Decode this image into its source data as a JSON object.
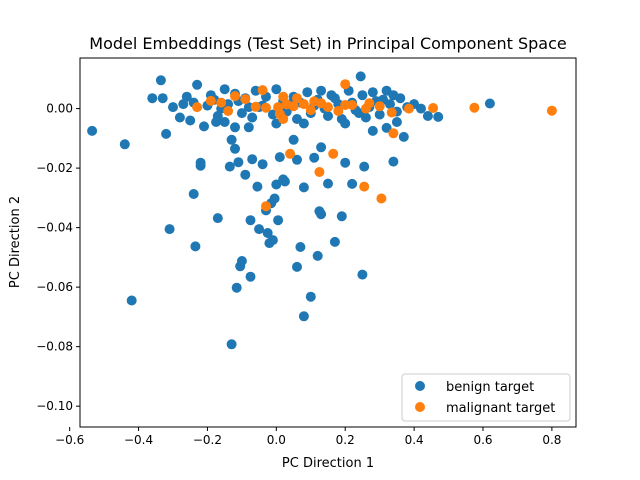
{
  "chart_data": {
    "type": "scatter",
    "title": "Model Embeddings (Test Set) in Principal Component Space",
    "xlabel": "PC Direction 1",
    "ylabel": "PC Direction 2",
    "xlim": [
      -0.57,
      0.87
    ],
    "ylim": [
      -0.107,
      0.017
    ],
    "xticks": [
      -0.6,
      -0.4,
      -0.2,
      0.0,
      0.2,
      0.4,
      0.6,
      0.8
    ],
    "xtick_labels": [
      "−0.6",
      "−0.4",
      "−0.2",
      "0.0",
      "0.2",
      "0.4",
      "0.6",
      "0.8"
    ],
    "yticks": [
      -0.1,
      -0.08,
      -0.06,
      -0.04,
      -0.02,
      0.0
    ],
    "ytick_labels": [
      "−0.10",
      "−0.08",
      "−0.06",
      "−0.04",
      "−0.02",
      "0.00"
    ],
    "grid": false,
    "legend_position": "lower-right",
    "series": [
      {
        "name": "benign target",
        "color": "#1f77b4",
        "points": [
          [
            -0.535,
            -0.0075
          ],
          [
            -0.44,
            -0.012
          ],
          [
            -0.42,
            -0.0645
          ],
          [
            -0.335,
            0.0095
          ],
          [
            -0.32,
            -0.0085
          ],
          [
            -0.31,
            -0.0405
          ],
          [
            -0.24,
            -0.0287
          ],
          [
            -0.235,
            -0.0463
          ],
          [
            -0.22,
            -0.0192
          ],
          [
            -0.22,
            -0.0182
          ],
          [
            -0.17,
            -0.0368
          ],
          [
            -0.175,
            -0.0045
          ],
          [
            -0.15,
            -0.0045
          ],
          [
            -0.135,
            -0.0195
          ],
          [
            -0.13,
            -0.0792
          ],
          [
            -0.13,
            -0.0105
          ],
          [
            -0.12,
            -0.0063
          ],
          [
            -0.12,
            -0.0135
          ],
          [
            -0.115,
            -0.0602
          ],
          [
            -0.11,
            -0.018
          ],
          [
            -0.105,
            -0.053
          ],
          [
            -0.1,
            -0.0512
          ],
          [
            -0.09,
            -0.0222
          ],
          [
            -0.08,
            -0.0063
          ],
          [
            -0.075,
            -0.0565
          ],
          [
            -0.075,
            -0.0375
          ],
          [
            -0.07,
            -0.017
          ],
          [
            -0.055,
            -0.0262
          ],
          [
            -0.05,
            -0.0405
          ],
          [
            -0.04,
            -0.0187
          ],
          [
            -0.03,
            -0.0342
          ],
          [
            -0.025,
            -0.0418
          ],
          [
            -0.02,
            -0.0452
          ],
          [
            -0.015,
            -0.0318
          ],
          [
            -0.01,
            -0.0442
          ],
          [
            -0.005,
            -0.0302
          ],
          [
            0.0,
            -0.0255
          ],
          [
            0.005,
            -0.0375
          ],
          [
            0.01,
            -0.0163
          ],
          [
            0.02,
            -0.0238
          ],
          [
            0.025,
            -0.0245
          ],
          [
            0.05,
            -0.0105
          ],
          [
            0.06,
            -0.0532
          ],
          [
            0.06,
            -0.0172
          ],
          [
            0.07,
            -0.0465
          ],
          [
            0.08,
            -0.0698
          ],
          [
            0.08,
            -0.0265
          ],
          [
            0.1,
            -0.0632
          ],
          [
            0.11,
            -0.0165
          ],
          [
            0.12,
            -0.0495
          ],
          [
            0.125,
            -0.0345
          ],
          [
            0.13,
            -0.0355
          ],
          [
            0.13,
            -0.013
          ],
          [
            0.15,
            -0.0252
          ],
          [
            0.17,
            -0.0448
          ],
          [
            0.19,
            -0.0362
          ],
          [
            0.2,
            -0.0182
          ],
          [
            0.22,
            -0.0253
          ],
          [
            0.25,
            -0.0558
          ],
          [
            0.245,
            0.0108
          ],
          [
            0.255,
            -0.0195
          ],
          [
            0.28,
            -0.0075
          ],
          [
            0.32,
            -0.0065
          ],
          [
            0.34,
            -0.0178
          ],
          [
            0.35,
            -0.0045
          ],
          [
            0.37,
            -0.0095
          ],
          [
            0.4,
            0.0015
          ],
          [
            0.42,
            0.0
          ],
          [
            0.44,
            -0.0025
          ],
          [
            0.47,
            -0.0028
          ],
          [
            0.62,
            0.0017
          ],
          [
            -0.36,
            0.0035
          ],
          [
            -0.33,
            0.0035
          ],
          [
            -0.3,
            0.0005
          ],
          [
            -0.28,
            -0.003
          ],
          [
            -0.26,
            0.004
          ],
          [
            -0.24,
            0.002
          ],
          [
            -0.23,
            0.008
          ],
          [
            -0.2,
            0.001
          ],
          [
            -0.19,
            0.0045
          ],
          [
            -0.17,
            -0.0025
          ],
          [
            -0.15,
            0.0065
          ],
          [
            -0.14,
            0.0015
          ],
          [
            -0.12,
            0.005
          ],
          [
            -0.1,
            -0.0015
          ],
          [
            -0.09,
            0.0035
          ],
          [
            -0.07,
            -0.003
          ],
          [
            -0.06,
            0.006
          ],
          [
            -0.04,
            0.001
          ],
          [
            -0.03,
            0.004
          ],
          [
            -0.01,
            -0.002
          ],
          [
            0.0,
            0.0065
          ],
          [
            0.02,
            0.0025
          ],
          [
            0.03,
            -0.001
          ],
          [
            0.05,
            0.004
          ],
          [
            0.06,
            -0.0035
          ],
          [
            0.07,
            0.002
          ],
          [
            0.09,
            0.0055
          ],
          [
            0.1,
            -0.0015
          ],
          [
            0.12,
            0.003
          ],
          [
            0.13,
            0.006
          ],
          [
            0.15,
            -0.0025
          ],
          [
            0.16,
            0.0045
          ],
          [
            0.18,
            0.0015
          ],
          [
            0.19,
            -0.0035
          ],
          [
            0.21,
            0.006
          ],
          [
            0.22,
            0.002
          ],
          [
            0.24,
            -0.0015
          ],
          [
            0.25,
            0.0045
          ],
          [
            0.27,
            0.0005
          ],
          [
            0.28,
            0.0055
          ],
          [
            0.3,
            -0.002
          ],
          [
            0.31,
            0.003
          ],
          [
            0.33,
            0.0015
          ],
          [
            0.35,
            -0.001
          ],
          [
            0.36,
            0.0035
          ],
          [
            0.38,
            0.0005
          ],
          [
            -0.25,
            -0.004
          ],
          [
            -0.21,
            -0.006
          ],
          [
            -0.16,
            0.0
          ],
          [
            -0.08,
            0.0005
          ],
          [
            0.0,
            -0.005
          ],
          [
            0.08,
            -0.005
          ],
          [
            0.14,
            0.0
          ],
          [
            0.2,
            -0.005
          ],
          [
            0.26,
            -0.003
          ],
          [
            0.32,
            0.006
          ],
          [
            -0.27,
            0.0015
          ],
          [
            -0.18,
            0.003
          ],
          [
            -0.11,
            0.0025
          ],
          [
            -0.05,
            0.0005
          ],
          [
            0.04,
            0.0015
          ],
          [
            0.11,
            0.001
          ],
          [
            0.17,
            0.0035
          ],
          [
            0.23,
            -0.0005
          ],
          [
            0.29,
            0.0025
          ],
          [
            0.34,
            0.0045
          ]
        ]
      },
      {
        "name": "malignant target",
        "color": "#ff7f0e",
        "points": [
          [
            0.8,
            -0.0007
          ],
          [
            0.575,
            0.0003
          ],
          [
            0.455,
            0.0002
          ],
          [
            0.385,
            0.0
          ],
          [
            0.34,
            -0.0083
          ],
          [
            0.335,
            -0.0013
          ],
          [
            0.305,
            -0.0302
          ],
          [
            0.3,
            0.0008
          ],
          [
            0.27,
            0.0018
          ],
          [
            0.255,
            -0.0262
          ],
          [
            0.2,
            0.0082
          ],
          [
            0.2,
            0.0012
          ],
          [
            0.165,
            -0.0152
          ],
          [
            0.13,
            0.0018
          ],
          [
            0.125,
            -0.0213
          ],
          [
            0.11,
            0.0024
          ],
          [
            0.08,
            0.0015
          ],
          [
            0.05,
            0.0008
          ],
          [
            0.04,
            -0.0152
          ],
          [
            0.03,
            0.0014
          ],
          [
            0.02,
            -0.0035
          ],
          [
            0.01,
            -0.0018
          ],
          [
            0.005,
            0.0005
          ],
          [
            -0.03,
            -0.0328
          ],
          [
            -0.03,
            0.0003
          ],
          [
            -0.04,
            0.0062
          ],
          [
            -0.06,
            0.0006
          ],
          [
            -0.09,
            0.0032
          ],
          [
            -0.12,
            0.0042
          ],
          [
            -0.14,
            -0.0008
          ],
          [
            -0.19,
            0.0026
          ],
          [
            -0.23,
            0.0005
          ],
          [
            0.06,
            0.0035
          ],
          [
            0.1,
            -0.0005
          ],
          [
            0.15,
            0.0005
          ],
          [
            0.18,
            -0.0008
          ],
          [
            0.22,
            0.0012
          ],
          [
            0.26,
            0.0
          ],
          [
            0.02,
            0.004
          ],
          [
            -0.16,
            0.002
          ]
        ]
      }
    ]
  }
}
